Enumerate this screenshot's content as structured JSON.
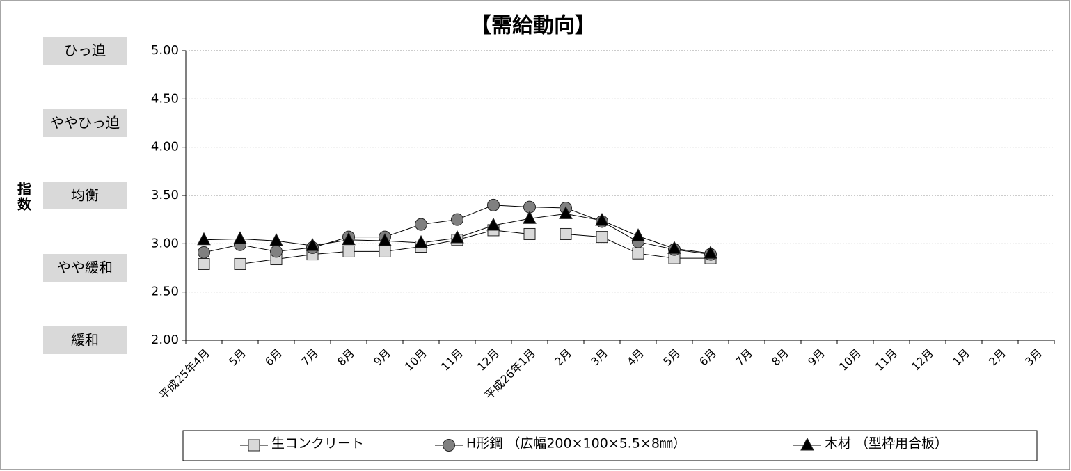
{
  "chart_data": {
    "type": "line",
    "title": "【需給動向】",
    "y_label": "指数",
    "level_labels": [
      "ひっ迫",
      "ややひっ迫",
      "均衡",
      "やや緩和",
      "緩和"
    ],
    "categories": [
      "平成25年4月",
      "5月",
      "6月",
      "7月",
      "8月",
      "9月",
      "10月",
      "11月",
      "12月",
      "平成26年1月",
      "2月",
      "3月",
      "4月",
      "5月",
      "6月",
      "7月",
      "8月",
      "9月",
      "10月",
      "11月",
      "12月",
      "1月",
      "2月",
      "3月"
    ],
    "series": [
      {
        "name": "生コンクリート",
        "color": "#d9d9d9",
        "marker": "square",
        "values": [
          2.79,
          2.79,
          2.84,
          2.89,
          2.92,
          2.92,
          2.97,
          3.04,
          3.14,
          3.1,
          3.1,
          3.07,
          2.9,
          2.85,
          2.85,
          null,
          null,
          null,
          null,
          null,
          null,
          null,
          null,
          null
        ]
      },
      {
        "name": "H形鋼 （広幅200×100×5.5×8㎜）",
        "color": "#808080",
        "marker": "circle",
        "values": [
          2.91,
          2.99,
          2.92,
          2.96,
          3.07,
          3.07,
          3.2,
          3.25,
          3.4,
          3.38,
          3.37,
          3.23,
          3.02,
          2.94,
          2.89,
          null,
          null,
          null,
          null,
          null,
          null,
          null,
          null,
          null
        ]
      },
      {
        "name": "木材 （型枠用合板）",
        "color": "#000000",
        "marker": "triangle",
        "values": [
          3.04,
          3.05,
          3.03,
          2.98,
          3.04,
          3.03,
          3.01,
          3.06,
          3.19,
          3.26,
          3.31,
          3.24,
          3.08,
          2.95,
          2.9,
          null,
          null,
          null,
          null,
          null,
          null,
          null,
          null,
          null
        ]
      }
    ],
    "ylim": [
      2.0,
      5.0
    ],
    "yticks": [
      {
        "value": 2,
        "label": "2.00"
      },
      {
        "value": 2.5,
        "label": "2.50"
      },
      {
        "value": 3,
        "label": "3.00"
      },
      {
        "value": 3.5,
        "label": "3.50"
      },
      {
        "value": 4,
        "label": "4.00"
      },
      {
        "value": 4.5,
        "label": "4.50"
      },
      {
        "value": 5,
        "label": "5.00"
      }
    ],
    "grid": true,
    "legend": "bottom"
  }
}
